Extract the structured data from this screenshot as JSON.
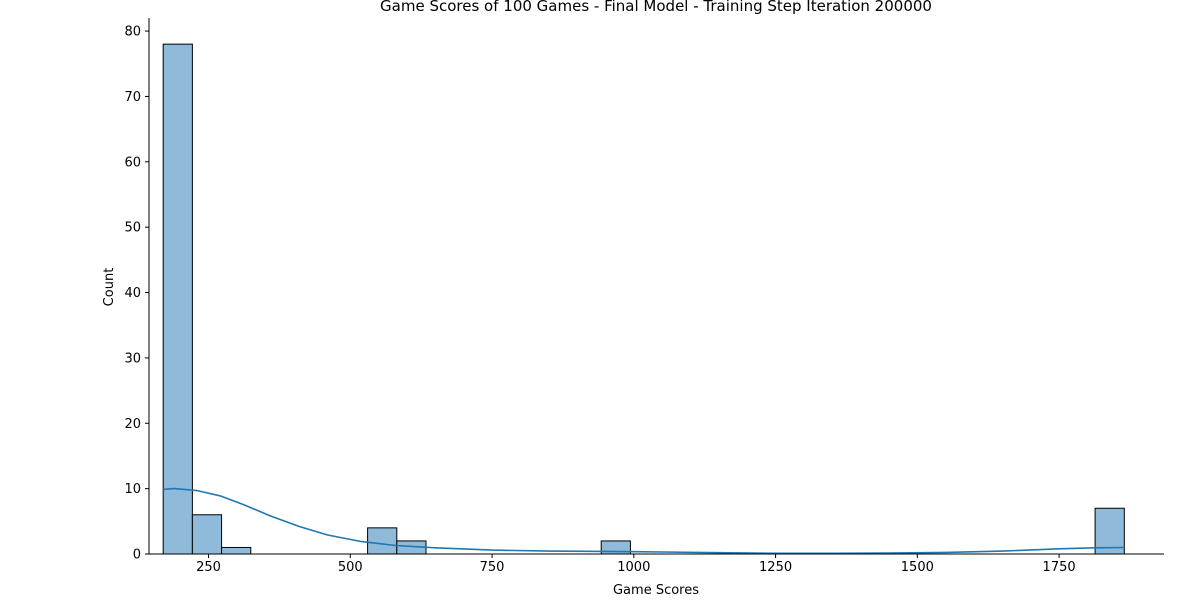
{
  "chart_data": {
    "type": "bar",
    "title": "Game Scores of 100 Games - Final Model - Training Step Iteration 200000",
    "xlabel": "Game Scores",
    "ylabel": "Count",
    "xlim": [
      145,
      1935
    ],
    "ylim": [
      0,
      82
    ],
    "xticks": [
      250,
      500,
      750,
      1000,
      1250,
      1500,
      1750
    ],
    "yticks": [
      0,
      10,
      20,
      30,
      40,
      50,
      60,
      70,
      80
    ],
    "grid": false,
    "legend": "none",
    "bin_width": 51.5,
    "bins": [
      {
        "start": 170,
        "count": 78
      },
      {
        "start": 221.5,
        "count": 6
      },
      {
        "start": 273,
        "count": 1
      },
      {
        "start": 530.5,
        "count": 4
      },
      {
        "start": 582,
        "count": 2
      },
      {
        "start": 942.5,
        "count": 2
      },
      {
        "start": 1813.5,
        "count": 7
      }
    ],
    "kde": {
      "x": [
        170,
        190,
        230,
        270,
        310,
        360,
        410,
        460,
        520,
        580,
        650,
        750,
        850,
        950,
        1050,
        1150,
        1250,
        1350,
        1450,
        1550,
        1650,
        1750,
        1813,
        1865
      ],
      "y": [
        9.9,
        10.0,
        9.7,
        8.9,
        7.6,
        5.8,
        4.2,
        2.9,
        1.9,
        1.3,
        0.95,
        0.6,
        0.45,
        0.4,
        0.3,
        0.2,
        0.1,
        0.1,
        0.15,
        0.25,
        0.45,
        0.8,
        0.95,
        1.0
      ]
    },
    "colors": {
      "bar_fill": "#8fbad9",
      "bar_edge": "#000000",
      "kde_line": "#1f77b4",
      "axis": "#000000"
    }
  }
}
